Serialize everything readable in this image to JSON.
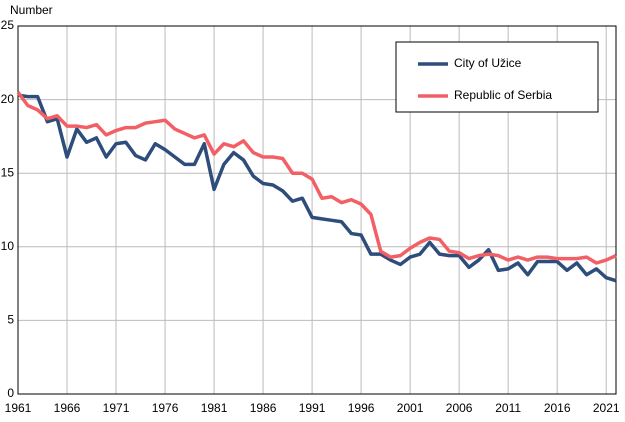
{
  "chart_data": {
    "type": "line",
    "y_label": "Number",
    "x": [
      1961,
      1962,
      1963,
      1964,
      1965,
      1966,
      1967,
      1968,
      1969,
      1970,
      1971,
      1972,
      1973,
      1974,
      1975,
      1976,
      1977,
      1978,
      1979,
      1980,
      1981,
      1982,
      1983,
      1984,
      1985,
      1986,
      1987,
      1988,
      1989,
      1990,
      1991,
      1992,
      1993,
      1994,
      1995,
      1996,
      1997,
      1998,
      1999,
      2000,
      2001,
      2002,
      2003,
      2004,
      2005,
      2006,
      2007,
      2008,
      2009,
      2010,
      2011,
      2012,
      2013,
      2014,
      2015,
      2016,
      2017,
      2018,
      2019,
      2020,
      2021,
      2022
    ],
    "series": [
      {
        "name": "City of Užice",
        "color": "#2e4d7b",
        "values": [
          20.3,
          20.2,
          20.2,
          18.5,
          18.7,
          16.1,
          18.0,
          17.1,
          17.4,
          16.1,
          17.0,
          17.1,
          16.2,
          15.9,
          17.0,
          16.6,
          16.1,
          15.6,
          15.6,
          17.0,
          13.9,
          15.6,
          16.4,
          15.9,
          14.8,
          14.3,
          14.2,
          13.8,
          13.1,
          13.3,
          12.0,
          11.9,
          11.8,
          11.7,
          10.9,
          10.8,
          9.5,
          9.5,
          9.1,
          8.8,
          9.3,
          9.5,
          10.3,
          9.5,
          9.4,
          9.4,
          8.6,
          9.1,
          9.8,
          8.4,
          8.5,
          8.9,
          8.1,
          9.0,
          9.0,
          9.0,
          8.4,
          8.9,
          8.1,
          8.5,
          7.9,
          7.7
        ]
      },
      {
        "name": "Republic of Serbia",
        "color": "#f26066",
        "values": [
          20.5,
          19.6,
          19.3,
          18.7,
          18.9,
          18.2,
          18.2,
          18.1,
          18.3,
          17.6,
          17.9,
          18.1,
          18.1,
          18.4,
          18.5,
          18.6,
          18.0,
          17.7,
          17.4,
          17.6,
          16.3,
          17.0,
          16.8,
          17.2,
          16.4,
          16.1,
          16.1,
          16.0,
          15.0,
          15.0,
          14.6,
          13.3,
          13.4,
          13.0,
          13.2,
          12.9,
          12.2,
          9.7,
          9.3,
          9.4,
          9.9,
          10.3,
          10.6,
          10.5,
          9.7,
          9.6,
          9.2,
          9.4,
          9.5,
          9.4,
          9.1,
          9.3,
          9.1,
          9.3,
          9.3,
          9.2,
          9.2,
          9.2,
          9.3,
          8.9,
          9.1,
          9.4
        ]
      }
    ],
    "xlim": [
      1961,
      2022
    ],
    "xticks": [
      1961,
      1966,
      1971,
      1976,
      1981,
      1986,
      1991,
      1996,
      2001,
      2006,
      2011,
      2016,
      2021
    ],
    "ylim": [
      0,
      25
    ],
    "yticks": [
      0,
      5,
      10,
      15,
      20,
      25
    ],
    "grid": true,
    "legend": "upper right"
  }
}
